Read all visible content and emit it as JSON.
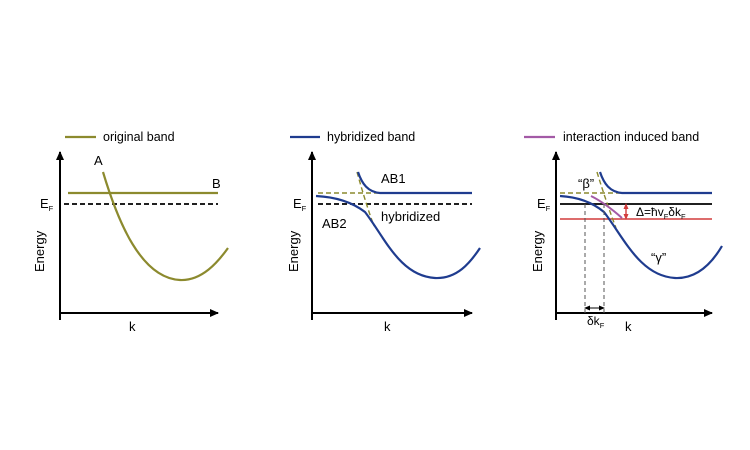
{
  "colors": {
    "original": "#8c8a2e",
    "hybridized": "#1f3c8f",
    "interaction": "#a35aa6",
    "fermi_dashed": "#000000",
    "gap_red": "#d23c3c",
    "guide_dashed": "#8c8a2e"
  },
  "panels": [
    {
      "legend": "original band",
      "xlabel": "k",
      "ylabel": "Energy",
      "fermi_label": "E",
      "fermi_sub": "F",
      "labels": {
        "A": "A",
        "B": "B"
      }
    },
    {
      "legend": "hybridized band",
      "xlabel": "k",
      "ylabel": "Energy",
      "fermi_label": "E",
      "fermi_sub": "F",
      "labels": {
        "AB1": "AB1",
        "AB2": "AB2",
        "hybridized": "hybridized"
      }
    },
    {
      "legend": "interaction induced band",
      "xlabel": "k",
      "ylabel": "Energy",
      "fermi_label": "E",
      "fermi_sub": "F",
      "labels": {
        "beta": "“β”",
        "gamma": "“γ”",
        "delta_main": "Δ=ħv",
        "delta_sub1": "F",
        "delta_mid": "δk",
        "delta_sub2": "F",
        "dk_main": "δk",
        "dk_sub": "F"
      }
    }
  ]
}
